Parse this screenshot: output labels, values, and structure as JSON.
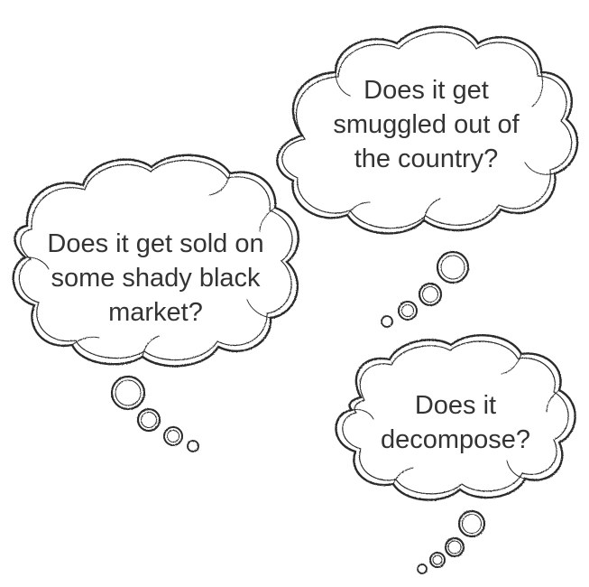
{
  "thoughts": [
    {
      "id": "top-right",
      "lines": [
        "Does it get",
        "smuggled out of",
        "the country?"
      ]
    },
    {
      "id": "left",
      "lines": [
        "Does it get sold on",
        "some shady black",
        "market?"
      ]
    },
    {
      "id": "bottom-right",
      "lines": [
        "Does it",
        "decompose?"
      ]
    }
  ],
  "colors": {
    "ink": "#2b2b2b",
    "text": "#333333",
    "background": "#ffffff"
  }
}
